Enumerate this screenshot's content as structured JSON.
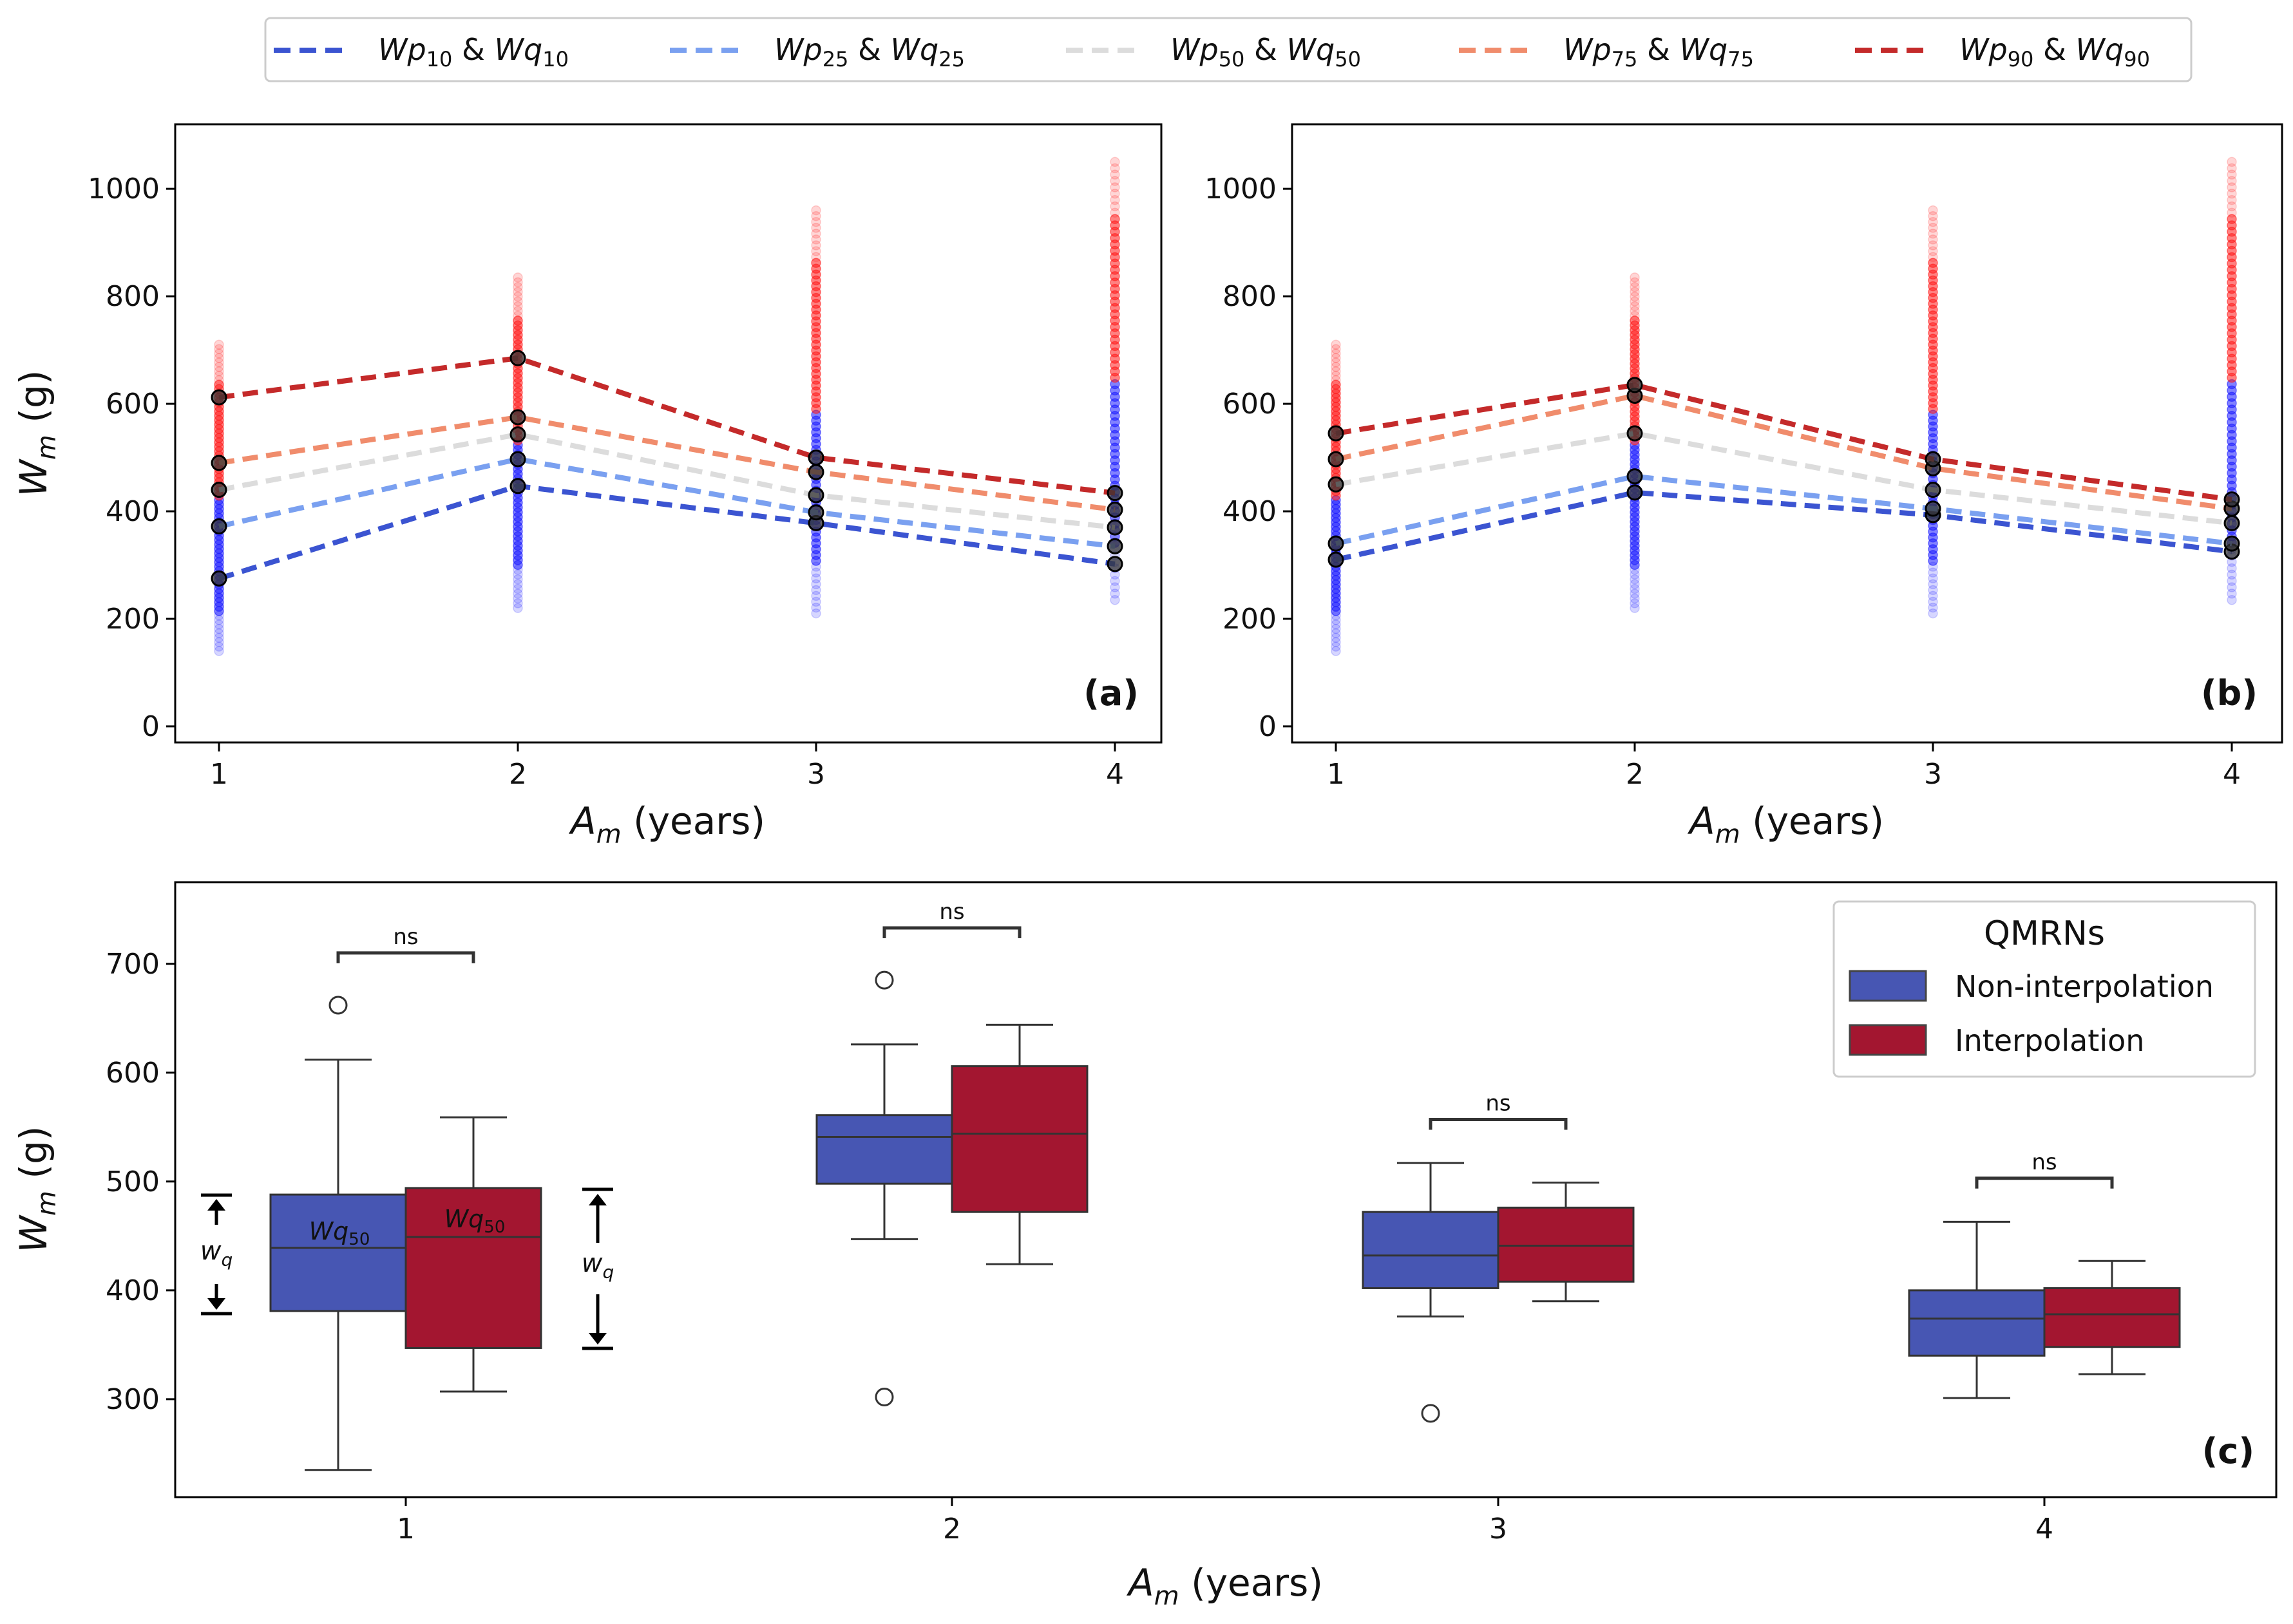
{
  "colors": {
    "p10": "#3b54d1",
    "p25": "#7aa0f0",
    "p50": "#dcdcdc",
    "p75": "#f08c6c",
    "p90": "#c42a2a",
    "box_noninterp": "#4756b3",
    "box_interp": "#a31630",
    "scatter_low": "#1a1aff",
    "scatter_high": "#ff1a1a",
    "wq_blue": "#3a4fc4",
    "wq_red": "#c0102c"
  },
  "legend_top": [
    {
      "key": "p10",
      "name": "Wp",
      "sub1": "10",
      "amp": " & ",
      "name2": "Wq",
      "sub2": "10"
    },
    {
      "key": "p25",
      "name": "Wp",
      "sub1": "25",
      "amp": " & ",
      "name2": "Wq",
      "sub2": "25"
    },
    {
      "key": "p50",
      "name": "Wp",
      "sub1": "50",
      "amp": " & ",
      "name2": "Wq",
      "sub2": "50"
    },
    {
      "key": "p75",
      "name": "Wp",
      "sub1": "75",
      "amp": " & ",
      "name2": "Wq",
      "sub2": "75"
    },
    {
      "key": "p90",
      "name": "Wp",
      "sub1": "90",
      "amp": " & ",
      "name2": "Wq",
      "sub2": "90"
    }
  ],
  "labels": {
    "ylabel_main": "W",
    "ylabel_sub": "m",
    "ylabel_unit": " (g)",
    "xlabel_main": "A",
    "xlabel_sub": "m",
    "xlabel_unit": " (years)",
    "tag_a": "(a)",
    "tag_b": "(b)",
    "tag_c": "(c)",
    "ns": "ns",
    "wq_main": "w",
    "wq_sub": "q",
    "wq50_main": "Wq",
    "wq50_sub": "50"
  },
  "box_legend": {
    "title": "QMRNs",
    "items": [
      "Non-interpolation",
      "Interpolation"
    ]
  },
  "chart_data": [
    {
      "panel": "a",
      "type": "line",
      "x": [
        1,
        2,
        3,
        4
      ],
      "xticks": [
        "1",
        "2",
        "3",
        "4"
      ],
      "ylim": [
        -30,
        1120
      ],
      "yticks": [
        0,
        200,
        400,
        600,
        800,
        1000
      ],
      "series": [
        {
          "name": "Wp10 & Wq10",
          "key": "p10",
          "values": [
            275,
            447,
            378,
            302
          ]
        },
        {
          "name": "Wp25 & Wq25",
          "key": "p25",
          "values": [
            372,
            497,
            398,
            335
          ]
        },
        {
          "name": "Wp50 & Wq50",
          "key": "p50",
          "values": [
            440,
            543,
            430,
            370
          ]
        },
        {
          "name": "Wp75 & Wq75",
          "key": "p75",
          "values": [
            490,
            575,
            473,
            403
          ]
        },
        {
          "name": "Wp90 & Wq90",
          "key": "p90",
          "values": [
            612,
            685,
            500,
            434
          ]
        }
      ],
      "scatter_range": [
        [
          140,
          710
        ],
        [
          220,
          835
        ],
        [
          210,
          960
        ],
        [
          235,
          1050
        ]
      ]
    },
    {
      "panel": "b",
      "type": "line",
      "x": [
        1,
        2,
        3,
        4
      ],
      "xticks": [
        "1",
        "2",
        "3",
        "4"
      ],
      "ylim": [
        -30,
        1120
      ],
      "yticks": [
        0,
        200,
        400,
        600,
        800,
        1000
      ],
      "series": [
        {
          "name": "Wp10 & Wq10",
          "key": "p10",
          "values": [
            310,
            435,
            393,
            325
          ]
        },
        {
          "name": "Wp25 & Wq25",
          "key": "p25",
          "values": [
            340,
            465,
            405,
            340
          ]
        },
        {
          "name": "Wp50 & Wq50",
          "key": "p50",
          "values": [
            450,
            545,
            440,
            378
          ]
        },
        {
          "name": "Wp75 & Wq75",
          "key": "p75",
          "values": [
            497,
            615,
            480,
            405
          ]
        },
        {
          "name": "Wp90 & Wq90",
          "key": "p90",
          "values": [
            545,
            635,
            497,
            422
          ]
        }
      ],
      "scatter_range": [
        [
          140,
          710
        ],
        [
          220,
          835
        ],
        [
          210,
          960
        ],
        [
          235,
          1050
        ]
      ]
    },
    {
      "panel": "c",
      "type": "box",
      "categories": [
        "1",
        "2",
        "3",
        "4"
      ],
      "ylim": [
        210,
        775
      ],
      "yticks": [
        300,
        400,
        500,
        600,
        700
      ],
      "groups": [
        {
          "name": "Non-interpolation",
          "boxes": [
            {
              "q1": 381,
              "median": 439,
              "q3": 488,
              "wlo": 235,
              "whi": 612,
              "fliers": [
                662
              ]
            },
            {
              "q1": 498,
              "median": 541,
              "q3": 561,
              "wlo": 447,
              "whi": 626,
              "fliers": [
                685,
                302
              ]
            },
            {
              "q1": 402,
              "median": 432,
              "q3": 472,
              "wlo": 376,
              "whi": 517,
              "fliers": [
                287
              ]
            },
            {
              "q1": 340,
              "median": 374,
              "q3": 400,
              "wlo": 301,
              "whi": 463,
              "fliers": []
            }
          ]
        },
        {
          "name": "Interpolation",
          "boxes": [
            {
              "q1": 347,
              "median": 449,
              "q3": 494,
              "wlo": 307,
              "whi": 559,
              "fliers": []
            },
            {
              "q1": 472,
              "median": 544,
              "q3": 606,
              "wlo": 424,
              "whi": 644,
              "fliers": []
            },
            {
              "q1": 408,
              "median": 441,
              "q3": 476,
              "wlo": 390,
              "whi": 499,
              "fliers": []
            },
            {
              "q1": 348,
              "median": 378,
              "q3": 402,
              "wlo": 323,
              "whi": 427,
              "fliers": []
            }
          ]
        }
      ],
      "significance": [
        {
          "category": "1",
          "y": 710,
          "label": "ns"
        },
        {
          "category": "2",
          "y": 733,
          "label": "ns"
        },
        {
          "category": "3",
          "y": 557,
          "label": "ns"
        },
        {
          "category": "4",
          "y": 503,
          "label": "ns"
        }
      ]
    }
  ]
}
